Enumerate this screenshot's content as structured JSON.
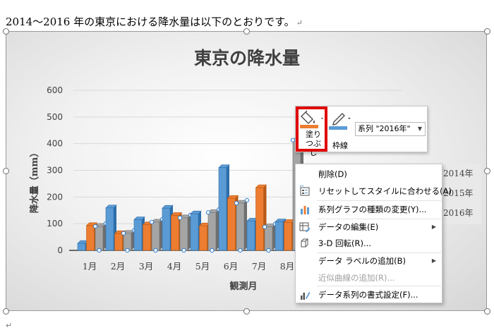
{
  "document": {
    "intro_text": "2014～2016 年の東京における降水量は以下のとおりです。",
    "paragraph_mark": "↵"
  },
  "chart_data": {
    "type": "bar",
    "title": "東京の降水量",
    "xlabel": "観測月",
    "ylabel": "降水量（mm）",
    "ylim": [
      0,
      600
    ],
    "yticks": [
      "0",
      "100",
      "200",
      "300",
      "400",
      "500",
      "600"
    ],
    "categories": [
      "1月",
      "2月",
      "3月",
      "4月",
      "5月",
      "6月",
      "7月",
      "8月"
    ],
    "series": [
      {
        "name": "2014年",
        "color": "#5b9bd5",
        "values": [
          26,
          159,
          115,
          158,
          137,
          310,
          110,
          107
        ]
      },
      {
        "name": "2015年",
        "color": "#ed7d31",
        "values": [
          93,
          63,
          96,
          131,
          92,
          195,
          235,
          105
        ]
      },
      {
        "name": "2016年",
        "color": "#a5a5a5",
        "values": [
          90,
          64,
          106,
          122,
          142,
          177,
          88,
          413
        ]
      }
    ],
    "legend": [
      "2014年",
      "2015年",
      "2016年"
    ],
    "legend_position": "right",
    "selected_series": "2016年"
  },
  "mini_toolbar": {
    "fill_label": "塗りつぶし",
    "outline_label": "枠線",
    "series_selector_value": "系列 \"2016年\""
  },
  "context_menu": {
    "items": [
      {
        "label": "削除(D)",
        "icon": "delete",
        "enabled": true,
        "submenu": false
      },
      {
        "label": "リセットしてスタイルに合わせる(A)",
        "icon": "reset-style-icon",
        "enabled": true,
        "submenu": false
      },
      {
        "label": "系列グラフの種類の変更(Y)...",
        "icon": "chart-type-icon",
        "enabled": true,
        "submenu": false
      },
      {
        "label": "データの編集(E)",
        "icon": "edit-data-icon",
        "enabled": true,
        "submenu": true
      },
      {
        "label": "3-D 回転(R)...",
        "icon": "rotate-3d-icon",
        "enabled": true,
        "submenu": false
      },
      {
        "label": "データ ラベルの追加(B)",
        "icon": "",
        "enabled": true,
        "submenu": true
      },
      {
        "label": "近似曲線の追加(R)...",
        "icon": "",
        "enabled": false,
        "submenu": false
      },
      {
        "label": "データ系列の書式設定(F)...",
        "icon": "format-series-icon",
        "enabled": true,
        "submenu": false
      }
    ]
  }
}
